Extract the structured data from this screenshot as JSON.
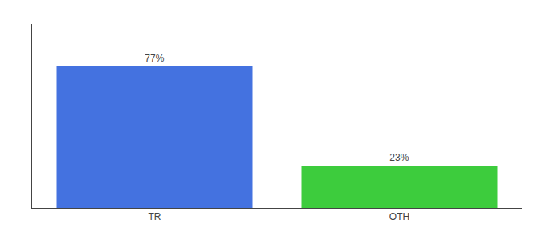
{
  "chart_data": {
    "type": "bar",
    "categories": [
      "TR",
      "OTH"
    ],
    "values": [
      77,
      23
    ],
    "colors": [
      "#4472e0",
      "#3dcc3d"
    ],
    "value_labels": [
      "77%",
      "23%"
    ],
    "data_labels": true,
    "ylim": [
      0,
      100
    ],
    "yticks": [],
    "tick_labels": "x",
    "grid": false
  }
}
